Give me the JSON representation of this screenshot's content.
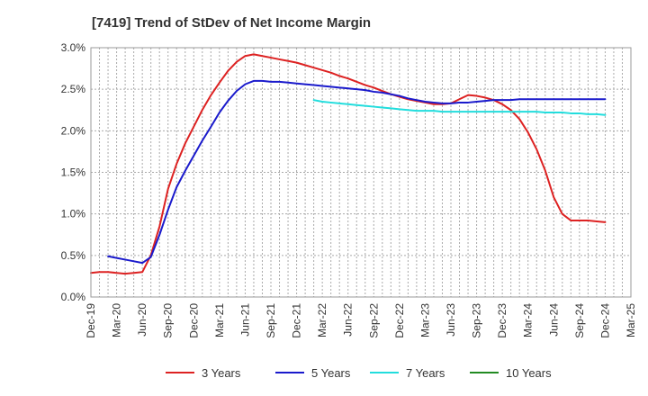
{
  "chart_data": {
    "type": "line",
    "title": "[7419]  Trend of StDev of Net Income Margin",
    "xlabel": "",
    "ylabel": "",
    "categories": [
      "Dec-19",
      "Mar-20",
      "Jun-20",
      "Sep-20",
      "Dec-20",
      "Mar-21",
      "Jun-21",
      "Sep-21",
      "Dec-21",
      "Mar-22",
      "Jun-22",
      "Sep-22",
      "Dec-22",
      "Mar-23",
      "Jun-23",
      "Sep-23",
      "Dec-23",
      "Mar-24",
      "Jun-24",
      "Sep-24",
      "Dec-24",
      "Mar-25"
    ],
    "y_ticks": [
      "0.0%",
      "0.5%",
      "1.0%",
      "1.5%",
      "2.0%",
      "2.5%",
      "3.0%"
    ],
    "ylim": [
      0,
      3.0
    ],
    "grid": true,
    "legend_position": "bottom",
    "series": [
      {
        "name": "3 Years",
        "color": "#dd2222",
        "points": [
          [
            0,
            0.29
          ],
          [
            0.33,
            0.3
          ],
          [
            0.67,
            0.3
          ],
          [
            1,
            0.29
          ],
          [
            1.33,
            0.28
          ],
          [
            1.67,
            0.29
          ],
          [
            2,
            0.3
          ],
          [
            2.33,
            0.5
          ],
          [
            2.67,
            0.85
          ],
          [
            3,
            1.3
          ],
          [
            3.33,
            1.6
          ],
          [
            3.67,
            1.85
          ],
          [
            4,
            2.05
          ],
          [
            4.33,
            2.25
          ],
          [
            4.67,
            2.43
          ],
          [
            5,
            2.58
          ],
          [
            5.33,
            2.72
          ],
          [
            5.67,
            2.83
          ],
          [
            6,
            2.9
          ],
          [
            6.33,
            2.92
          ],
          [
            6.67,
            2.9
          ],
          [
            7,
            2.88
          ],
          [
            7.33,
            2.86
          ],
          [
            7.67,
            2.84
          ],
          [
            8,
            2.82
          ],
          [
            8.33,
            2.79
          ],
          [
            8.67,
            2.76
          ],
          [
            9,
            2.73
          ],
          [
            9.33,
            2.7
          ],
          [
            9.67,
            2.66
          ],
          [
            10,
            2.63
          ],
          [
            10.33,
            2.59
          ],
          [
            10.67,
            2.55
          ],
          [
            11,
            2.52
          ],
          [
            11.33,
            2.48
          ],
          [
            11.67,
            2.44
          ],
          [
            12,
            2.41
          ],
          [
            12.33,
            2.38
          ],
          [
            12.67,
            2.36
          ],
          [
            13,
            2.34
          ],
          [
            13.33,
            2.32
          ],
          [
            13.67,
            2.32
          ],
          [
            14,
            2.33
          ],
          [
            14.33,
            2.38
          ],
          [
            14.67,
            2.43
          ],
          [
            15,
            2.42
          ],
          [
            15.33,
            2.4
          ],
          [
            15.67,
            2.37
          ],
          [
            16,
            2.32
          ],
          [
            16.33,
            2.25
          ],
          [
            16.67,
            2.14
          ],
          [
            17,
            1.98
          ],
          [
            17.33,
            1.78
          ],
          [
            17.67,
            1.52
          ],
          [
            18,
            1.2
          ],
          [
            18.33,
            1.0
          ],
          [
            18.67,
            0.92
          ],
          [
            19,
            0.92
          ],
          [
            19.33,
            0.92
          ],
          [
            19.67,
            0.91
          ],
          [
            20,
            0.9
          ]
        ]
      },
      {
        "name": "5 Years",
        "color": "#1a1acc",
        "points": [
          [
            0.67,
            0.49
          ],
          [
            1,
            0.47
          ],
          [
            1.33,
            0.45
          ],
          [
            1.67,
            0.43
          ],
          [
            2,
            0.41
          ],
          [
            2.33,
            0.48
          ],
          [
            2.67,
            0.75
          ],
          [
            3,
            1.05
          ],
          [
            3.33,
            1.32
          ],
          [
            3.67,
            1.52
          ],
          [
            4,
            1.7
          ],
          [
            4.33,
            1.88
          ],
          [
            4.67,
            2.05
          ],
          [
            5,
            2.22
          ],
          [
            5.33,
            2.36
          ],
          [
            5.67,
            2.48
          ],
          [
            6,
            2.56
          ],
          [
            6.33,
            2.6
          ],
          [
            6.67,
            2.6
          ],
          [
            7,
            2.59
          ],
          [
            7.33,
            2.59
          ],
          [
            7.67,
            2.58
          ],
          [
            8,
            2.57
          ],
          [
            8.33,
            2.56
          ],
          [
            8.67,
            2.55
          ],
          [
            9,
            2.54
          ],
          [
            9.33,
            2.53
          ],
          [
            9.67,
            2.52
          ],
          [
            10,
            2.51
          ],
          [
            10.33,
            2.5
          ],
          [
            10.67,
            2.49
          ],
          [
            11,
            2.47
          ],
          [
            11.33,
            2.46
          ],
          [
            11.67,
            2.44
          ],
          [
            12,
            2.42
          ],
          [
            12.33,
            2.39
          ],
          [
            12.67,
            2.37
          ],
          [
            13,
            2.35
          ],
          [
            13.33,
            2.34
          ],
          [
            13.67,
            2.33
          ],
          [
            14,
            2.33
          ],
          [
            14.33,
            2.34
          ],
          [
            14.67,
            2.34
          ],
          [
            15,
            2.35
          ],
          [
            15.33,
            2.36
          ],
          [
            15.67,
            2.37
          ],
          [
            16,
            2.37
          ],
          [
            16.33,
            2.37
          ],
          [
            16.67,
            2.38
          ],
          [
            17,
            2.38
          ],
          [
            17.33,
            2.38
          ],
          [
            17.67,
            2.38
          ],
          [
            18,
            2.38
          ],
          [
            18.33,
            2.38
          ],
          [
            18.67,
            2.38
          ],
          [
            19,
            2.38
          ],
          [
            19.33,
            2.38
          ],
          [
            19.67,
            2.38
          ],
          [
            20,
            2.38
          ]
        ]
      },
      {
        "name": "7 Years",
        "color": "#22dddd",
        "points": [
          [
            8.67,
            2.37
          ],
          [
            9,
            2.35
          ],
          [
            9.33,
            2.34
          ],
          [
            9.67,
            2.33
          ],
          [
            10,
            2.32
          ],
          [
            10.33,
            2.31
          ],
          [
            10.67,
            2.3
          ],
          [
            11,
            2.29
          ],
          [
            11.33,
            2.28
          ],
          [
            11.67,
            2.27
          ],
          [
            12,
            2.26
          ],
          [
            12.33,
            2.25
          ],
          [
            12.67,
            2.24
          ],
          [
            13,
            2.24
          ],
          [
            13.33,
            2.24
          ],
          [
            13.67,
            2.23
          ],
          [
            14,
            2.23
          ],
          [
            14.33,
            2.23
          ],
          [
            14.67,
            2.23
          ],
          [
            15,
            2.23
          ],
          [
            15.33,
            2.23
          ],
          [
            15.67,
            2.23
          ],
          [
            16,
            2.23
          ],
          [
            16.33,
            2.23
          ],
          [
            16.67,
            2.23
          ],
          [
            17,
            2.23
          ],
          [
            17.33,
            2.23
          ],
          [
            17.67,
            2.22
          ],
          [
            18,
            2.22
          ],
          [
            18.33,
            2.22
          ],
          [
            18.67,
            2.21
          ],
          [
            19,
            2.21
          ],
          [
            19.33,
            2.2
          ],
          [
            19.67,
            2.2
          ],
          [
            20,
            2.19
          ]
        ]
      },
      {
        "name": "10 Years",
        "color": "#228b22",
        "points": []
      }
    ]
  }
}
